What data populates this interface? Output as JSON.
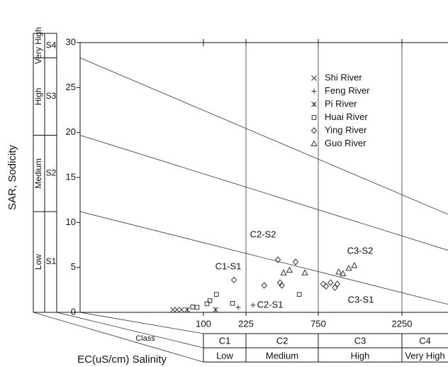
{
  "chart_data": {
    "type": "scatter",
    "y_label": "SAR, Sodicity",
    "x_label": "EC(uS/cm) Salinity",
    "class_label": "Class",
    "log_x": true,
    "xlim": [
      0.5,
      4000
    ],
    "xticks": [
      100,
      225,
      750,
      2250
    ],
    "ylim": [
      0,
      30
    ],
    "yticks": [
      0,
      5,
      10,
      15,
      20,
      25,
      30
    ],
    "legend": "upper right",
    "salinity_classes": [
      {
        "class": "C1",
        "level": "Low"
      },
      {
        "class": "C2",
        "level": "Medium"
      },
      {
        "class": "C3",
        "level": "High"
      },
      {
        "class": "C4",
        "level": "Very High"
      }
    ],
    "sodium_classes": [
      {
        "class": "S1",
        "level": "Low"
      },
      {
        "class": "S2",
        "level": "Medium"
      },
      {
        "class": "S3",
        "level": "High"
      },
      {
        "class": "S4",
        "level": "Very High"
      }
    ],
    "sodium_lines": [
      {
        "y_start": 11.2,
        "y_end": 0.9
      },
      {
        "y_start": 19.7,
        "y_end": 6.9
      },
      {
        "y_start": 28.3,
        "y_end": 10.9
      }
    ],
    "zone_labels": [
      "C2-S2",
      "C1-S1",
      "C2-S1",
      "C3-S2",
      "C3-S1"
    ],
    "series": [
      {
        "name": "Shi River",
        "marker": "x",
        "color": "#333333",
        "x": [
          27,
          32,
          39
        ],
        "values": [
          0.3,
          0.3,
          0.3
        ]
      },
      {
        "name": "Feng River",
        "marker": "+",
        "color": "#333333",
        "x": [
          194,
          253
        ],
        "values": [
          0.55,
          0.8
        ]
      },
      {
        "name": "Pi River",
        "marker": "*",
        "color": "#333333",
        "x": [
          50,
          126
        ],
        "values": [
          0.3,
          0.3
        ]
      },
      {
        "name": "Huai  River",
        "marker": "square",
        "color": "#333333",
        "x": [
          63,
          76,
          107,
          113,
          128,
          174,
          546
        ],
        "values": [
          0.6,
          0.55,
          0.95,
          1.3,
          2.0,
          1.0,
          2.0
        ]
      },
      {
        "name": "Ying River",
        "marker": "diamond",
        "color": "#333333",
        "x": [
          179,
          305,
          383,
          396,
          409,
          514,
          800,
          831,
          881,
          933,
          963
        ],
        "values": [
          3.6,
          3.0,
          5.85,
          3.3,
          3.0,
          5.6,
          3.15,
          2.9,
          3.3,
          2.75,
          3.15
        ]
      },
      {
        "name": "Guo River",
        "marker": "triangle",
        "color": "#333333",
        "x": [
          421,
          465,
          600,
          981,
          1037,
          1119,
          1204
        ],
        "values": [
          4.4,
          4.7,
          4.4,
          4.5,
          4.3,
          4.9,
          5.2
        ]
      }
    ]
  }
}
